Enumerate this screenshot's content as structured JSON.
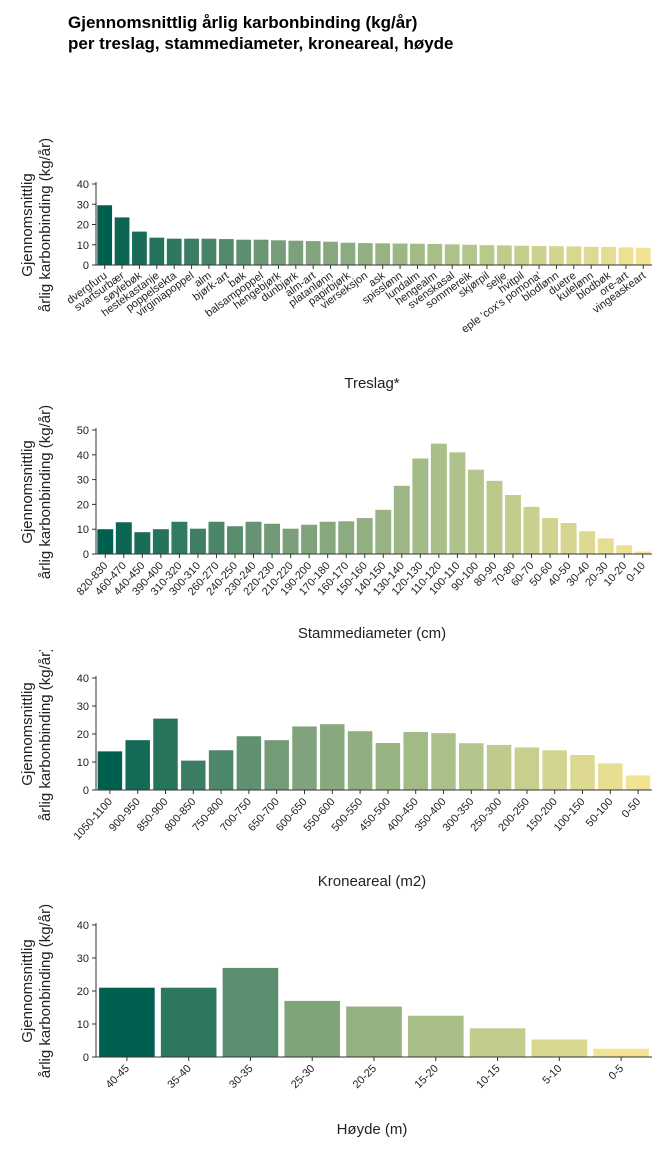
{
  "title": {
    "line1": "Gjennomsnittlig årlig karbonbinding (kg/år)",
    "line2": "per treslag, stammediameter, kroneareal, høyde"
  },
  "colors": {
    "gradient_start": "#00604f",
    "gradient_end": "#f2e394",
    "axis": "#333333"
  },
  "chart_data": [
    {
      "type": "bar",
      "title": "",
      "ylabel_lines": [
        "Gjennomsnittlig",
        "årlig karbonbinding (kg/år)"
      ],
      "xlabel": "Treslag*",
      "ylim": [
        0,
        40
      ],
      "yticks": [
        0,
        10,
        20,
        30,
        40
      ],
      "categories": [
        "dvergfuru",
        "svartsurbær",
        "søylebøk",
        "hestekastanje",
        "poppelsekta",
        "virginiapoppel",
        "alm",
        "bjørk-art",
        "bøk",
        "balsampoppel",
        "hengebjørk",
        "dunbjørk",
        "alm-art",
        "platanlønn",
        "papirbjørk",
        "vierseksjon",
        "ask",
        "spisslønn",
        "lundalm",
        "hengealm",
        "svenskasal",
        "sommereik",
        "skjørpil",
        "selje",
        "hvitpil",
        "eple 'cox's pomona'",
        "blodlønn",
        "duetre",
        "kulelønn",
        "blodbøk",
        "ore-art",
        "vingeaskeart"
      ],
      "values": [
        29.5,
        23.5,
        16.5,
        13.5,
        13,
        13,
        13,
        12.8,
        12.5,
        12.5,
        12.2,
        12,
        11.8,
        11.5,
        11,
        10.8,
        10.7,
        10.6,
        10.5,
        10.4,
        10.2,
        10,
        9.8,
        9.7,
        9.5,
        9.4,
        9.3,
        9.2,
        9,
        8.9,
        8.7,
        8.5
      ]
    },
    {
      "type": "bar",
      "title": "",
      "ylabel_lines": [
        "Gjennomsnittlig",
        "årlig karbonbinding (kg/år)"
      ],
      "xlabel": "Stammediameter (cm)",
      "ylim": [
        0,
        50
      ],
      "yticks": [
        0,
        10,
        20,
        30,
        40,
        50
      ],
      "categories": [
        "820-830",
        "460-470",
        "440-450",
        "390-400",
        "310-320",
        "300-310",
        "260-270",
        "240-250",
        "230-240",
        "220-230",
        "210-220",
        "190-200",
        "170-180",
        "160-170",
        "150-160",
        "140-150",
        "130-140",
        "120-130",
        "110-120",
        "100-110",
        "90-100",
        "80-90",
        "70-80",
        "60-70",
        "50-60",
        "40-50",
        "30-40",
        "20-30",
        "10-20",
        "0-10"
      ],
      "values": [
        10,
        12.8,
        8.8,
        10,
        13,
        10.2,
        13,
        11.2,
        13,
        12.2,
        10.2,
        11.8,
        13,
        13.2,
        14.5,
        17.8,
        27.5,
        38.5,
        44.5,
        41,
        34,
        29.5,
        23.8,
        19,
        14.5,
        12.5,
        9.2,
        6.3,
        3.5,
        1
      ]
    },
    {
      "type": "bar",
      "title": "",
      "ylabel_lines": [
        "Gjennomsnittlig",
        "årlig karbonbinding (kg/år)"
      ],
      "xlabel": "Kroneareal (m2)",
      "ylim": [
        0,
        40
      ],
      "yticks": [
        0,
        10,
        20,
        30,
        40
      ],
      "categories": [
        "1050-1100",
        "900-950",
        "850-900",
        "800-850",
        "750-800",
        "700-750",
        "650-700",
        "600-650",
        "550-600",
        "500-550",
        "450-500",
        "400-450",
        "350-400",
        "300-350",
        "250-300",
        "200-250",
        "150-200",
        "100-150",
        "50-100",
        "0-50"
      ],
      "values": [
        13.8,
        17.8,
        25.5,
        10.5,
        14.2,
        19.2,
        17.8,
        22.7,
        23.5,
        21,
        16.8,
        20.7,
        20.3,
        16.7,
        16.1,
        15.2,
        14.2,
        12.5,
        9.5,
        5.2
      ]
    },
    {
      "type": "bar",
      "title": "",
      "ylabel_lines": [
        "Gjennomsnittlig",
        "årlig karbonbinding (kg/år)"
      ],
      "xlabel": "Høyde (m)",
      "ylim": [
        0,
        40
      ],
      "yticks": [
        0,
        10,
        20,
        30,
        40
      ],
      "categories": [
        "40-45",
        "35-40",
        "30-35",
        "25-30",
        "20-25",
        "15-20",
        "10-15",
        "5-10",
        "0-5"
      ],
      "values": [
        21,
        21,
        27,
        17,
        15.3,
        12.5,
        8.7,
        5.3,
        2.5
      ]
    }
  ]
}
